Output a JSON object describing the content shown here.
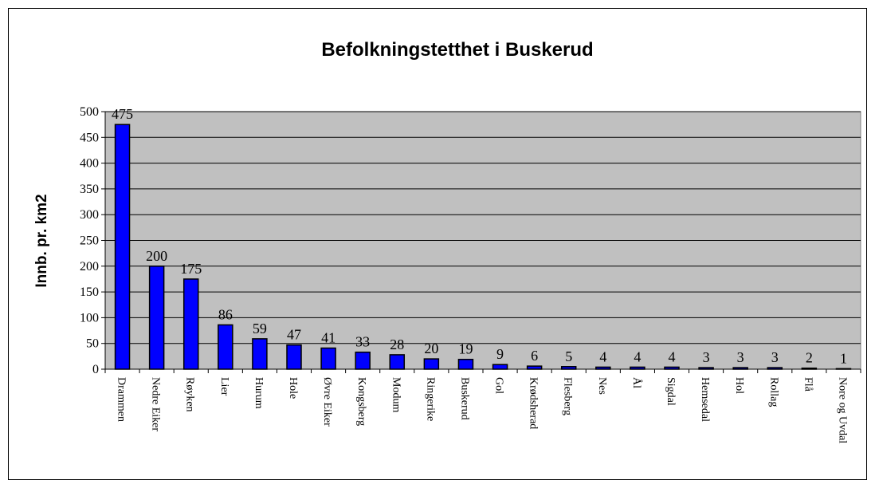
{
  "chart_data": {
    "type": "bar",
    "title": "Befolkningstetthet i Buskerud",
    "y_label": "Innb. pr. km2",
    "categories": [
      "Drammen",
      "Nedre Eiker",
      "Røyken",
      "Lier",
      "Hurum",
      "Hole",
      "Øvre Eiker",
      "Kongsberg",
      "Modum",
      "Ringerike",
      "Buskerud",
      "Gol",
      "Krødsherad",
      "Flesberg",
      "Nes",
      "Ål",
      "Sigdal",
      "Hemsedal",
      "Hol",
      "Rollag",
      "Flå",
      "Nore og Uvdal"
    ],
    "values": [
      475,
      200,
      175,
      86,
      59,
      47,
      41,
      33,
      28,
      20,
      19,
      9,
      6,
      5,
      4,
      4,
      4,
      3,
      3,
      3,
      2,
      1
    ],
    "color": "#0000ff",
    "ylim": [
      0,
      500
    ],
    "yticks": [
      0,
      50,
      100,
      150,
      200,
      250,
      300,
      350,
      400,
      450,
      500
    ],
    "grid": true
  }
}
